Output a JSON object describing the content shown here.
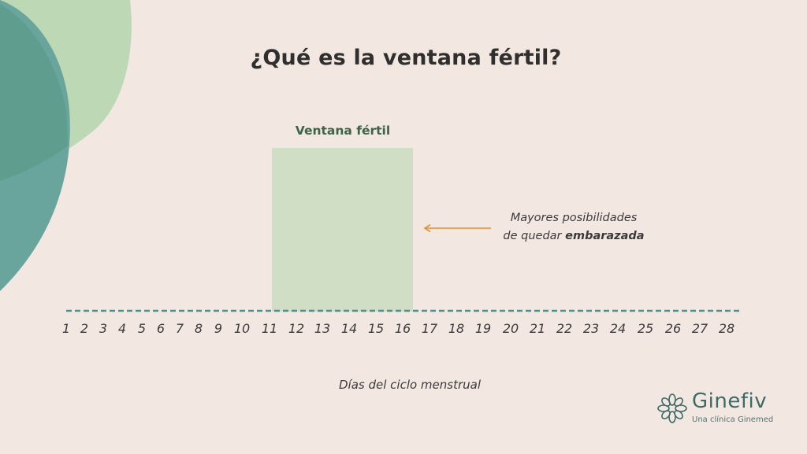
{
  "title": "¿Qué es la ventana fértil?",
  "window_label": "Ventana fértil",
  "callout": {
    "line1": "Mayores posibilidades",
    "line2_prefix": "de quedar ",
    "line2_bold": "embarazada"
  },
  "days": [
    "1",
    "2",
    "3",
    "4",
    "5",
    "6",
    "7",
    "8",
    "9",
    "10",
    "11",
    "12",
    "13",
    "14",
    "15",
    "16",
    "17",
    "18",
    "19",
    "20",
    "21",
    "22",
    "23",
    "24",
    "25",
    "26",
    "27",
    "28"
  ],
  "fertile_window": {
    "start_day": 11,
    "end_day": 16
  },
  "axis_caption": "Días del ciclo menstrual",
  "logo": {
    "name": "Ginefiv",
    "tagline": "Una clínica Ginemed"
  },
  "colors": {
    "background": "#f3e8e1",
    "blob_light": "#bcd8b5",
    "blob_dark": "#6aa59d",
    "window": "#cfdec5",
    "arrow": "#e08a2e",
    "axis": "#4e8f8b",
    "brand": "#3d6a66"
  }
}
